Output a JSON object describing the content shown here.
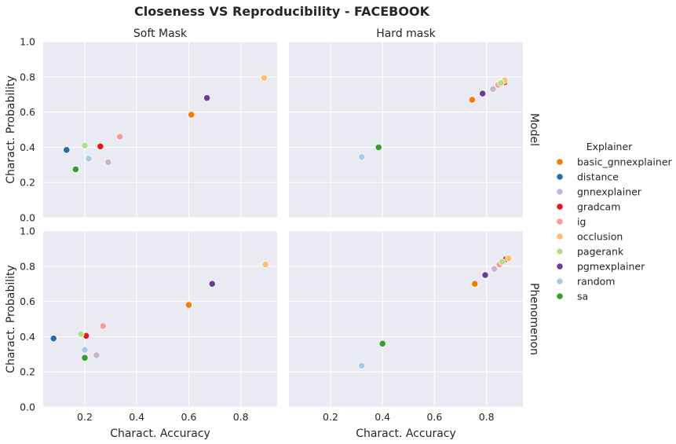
{
  "chart_data": {
    "type": "scatter",
    "title": "Closeness VS Reproducibility - FACEBOOK",
    "xlabel": "Charact. Accuracy",
    "ylabel": "Charact. Probability",
    "xticks": [
      "0.2",
      "0.4",
      "0.6",
      "0.8"
    ],
    "yticks": [
      "0.0",
      "0.2",
      "0.4",
      "0.6",
      "0.8",
      "1.0"
    ],
    "xlim": [
      0.04,
      0.94
    ],
    "ylim": [
      0.0,
      1.0
    ],
    "grid": true,
    "columns": [
      "Soft Mask",
      "Hard mask"
    ],
    "rows": [
      "Model",
      "Phenomenon"
    ],
    "legend": {
      "title": "Explainer",
      "placement": "right",
      "entries": [
        {
          "name": "basic_gnnexplainer",
          "color": "#f57c00"
        },
        {
          "name": "distance",
          "color": "#1f6fb4"
        },
        {
          "name": "gnnexplainer",
          "color": "#c9b2d6"
        },
        {
          "name": "gradcam",
          "color": "#e31a1c"
        },
        {
          "name": "ig",
          "color": "#fb9a99"
        },
        {
          "name": "occlusion",
          "color": "#fdbf6f"
        },
        {
          "name": "pagerank",
          "color": "#b2df8a"
        },
        {
          "name": "pgmexplainer",
          "color": "#6a3d9a"
        },
        {
          "name": "random",
          "color": "#a6cee3"
        },
        {
          "name": "sa",
          "color": "#33a02c"
        }
      ]
    },
    "panels": [
      {
        "row": "Model",
        "column": "Soft Mask",
        "points": [
          {
            "explainer": "basic_gnnexplainer",
            "x": 0.61,
            "y": 0.585
          },
          {
            "explainer": "distance",
            "x": 0.13,
            "y": 0.385
          },
          {
            "explainer": "gnnexplainer",
            "x": 0.29,
            "y": 0.315
          },
          {
            "explainer": "gradcam",
            "x": 0.26,
            "y": 0.405
          },
          {
            "explainer": "ig",
            "x": 0.335,
            "y": 0.46
          },
          {
            "explainer": "occlusion",
            "x": 0.89,
            "y": 0.795
          },
          {
            "explainer": "pagerank",
            "x": 0.2,
            "y": 0.41
          },
          {
            "explainer": "pgmexplainer",
            "x": 0.67,
            "y": 0.68
          },
          {
            "explainer": "random",
            "x": 0.215,
            "y": 0.335
          },
          {
            "explainer": "sa",
            "x": 0.165,
            "y": 0.275
          }
        ]
      },
      {
        "row": "Model",
        "column": "Hard mask",
        "points": [
          {
            "explainer": "basic_gnnexplainer",
            "x": 0.745,
            "y": 0.67
          },
          {
            "explainer": "distance",
            "x": 0.86,
            "y": 0.77
          },
          {
            "explainer": "gnnexplainer",
            "x": 0.825,
            "y": 0.73
          },
          {
            "explainer": "gradcam",
            "x": 0.87,
            "y": 0.77
          },
          {
            "explainer": "ig",
            "x": 0.845,
            "y": 0.755
          },
          {
            "explainer": "occlusion",
            "x": 0.87,
            "y": 0.78
          },
          {
            "explainer": "pagerank",
            "x": 0.855,
            "y": 0.765
          },
          {
            "explainer": "pgmexplainer",
            "x": 0.785,
            "y": 0.705
          },
          {
            "explainer": "random",
            "x": 0.32,
            "y": 0.345
          },
          {
            "explainer": "sa",
            "x": 0.385,
            "y": 0.4
          }
        ]
      },
      {
        "row": "Phenomenon",
        "column": "Soft Mask",
        "points": [
          {
            "explainer": "basic_gnnexplainer",
            "x": 0.6,
            "y": 0.58
          },
          {
            "explainer": "distance",
            "x": 0.08,
            "y": 0.39
          },
          {
            "explainer": "gnnexplainer",
            "x": 0.245,
            "y": 0.295
          },
          {
            "explainer": "gradcam",
            "x": 0.205,
            "y": 0.405
          },
          {
            "explainer": "ig",
            "x": 0.27,
            "y": 0.46
          },
          {
            "explainer": "occlusion",
            "x": 0.895,
            "y": 0.81
          },
          {
            "explainer": "pagerank",
            "x": 0.185,
            "y": 0.415
          },
          {
            "explainer": "pgmexplainer",
            "x": 0.69,
            "y": 0.7
          },
          {
            "explainer": "random",
            "x": 0.2,
            "y": 0.325
          },
          {
            "explainer": "sa",
            "x": 0.2,
            "y": 0.28
          }
        ]
      },
      {
        "row": "Phenomenon",
        "column": "Hard mask",
        "points": [
          {
            "explainer": "basic_gnnexplainer",
            "x": 0.755,
            "y": 0.7
          },
          {
            "explainer": "distance",
            "x": 0.87,
            "y": 0.835
          },
          {
            "explainer": "gnnexplainer",
            "x": 0.83,
            "y": 0.785
          },
          {
            "explainer": "gradcam",
            "x": 0.875,
            "y": 0.84
          },
          {
            "explainer": "ig",
            "x": 0.85,
            "y": 0.81
          },
          {
            "explainer": "occlusion",
            "x": 0.885,
            "y": 0.845
          },
          {
            "explainer": "pagerank",
            "x": 0.86,
            "y": 0.825
          },
          {
            "explainer": "pgmexplainer",
            "x": 0.795,
            "y": 0.75
          },
          {
            "explainer": "random",
            "x": 0.32,
            "y": 0.235
          },
          {
            "explainer": "sa",
            "x": 0.4,
            "y": 0.36
          }
        ]
      }
    ]
  }
}
